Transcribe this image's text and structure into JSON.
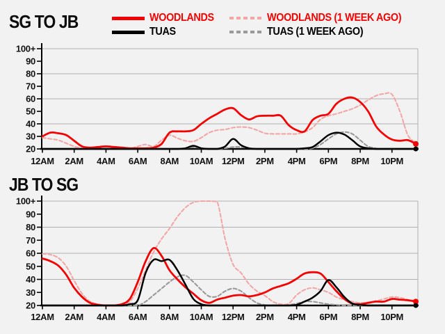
{
  "colors": {
    "background": "#f2f2f2",
    "red": "#f20202",
    "pink": "#f3a6a6",
    "black": "#000000",
    "gray": "#999999",
    "grid": "#b0b0b0",
    "axis": "#000000",
    "label": "#111111"
  },
  "legend": {
    "items": [
      {
        "label": "WOODLANDS",
        "text_color": "#f20202",
        "swatch_color": "#f20202",
        "swatch_style": "solid"
      },
      {
        "label": "WOODLANDS (1 WEEK AGO)",
        "text_color": "#f20202",
        "swatch_color": "#f3a6a6",
        "swatch_style": "dashed"
      },
      {
        "label": "TUAS",
        "text_color": "#000000",
        "swatch_color": "#000000",
        "swatch_style": "solid"
      },
      {
        "label": "TUAS (1 WEEK AGO)",
        "text_color": "#000000",
        "swatch_color": "#999999",
        "swatch_style": "dashed"
      }
    ]
  },
  "chart_data": [
    {
      "type": "line",
      "title": "SG TO JB",
      "x_labels": [
        "12AM",
        "2AM",
        "4AM",
        "6AM",
        "8AM",
        "10AM",
        "12PM",
        "2PM",
        "4PM",
        "6PM",
        "8PM",
        "10PM"
      ],
      "x_tick_step_hours": 2,
      "x_start_hour": 0,
      "x_step_hours": 0.5,
      "x_end_hour": 23.5,
      "ylim": [
        20,
        100
      ],
      "y_ticks": [
        "20",
        "30",
        "40",
        "50",
        "60",
        "70",
        "80",
        "90",
        "100+"
      ],
      "gridlines_at": [
        40,
        60,
        80,
        100
      ],
      "grid": true,
      "legend_position": "top",
      "series": [
        {
          "name": "WOODLANDS (1 WEEK AGO)",
          "style": "dashed",
          "color": "#f3a6a6",
          "end_dot": false,
          "values": [
            29,
            28,
            27,
            24.5,
            22,
            20.5,
            20,
            20,
            20,
            20,
            20,
            20,
            22,
            23.5,
            22,
            27,
            31,
            28.5,
            26.5,
            26,
            29,
            33,
            35,
            35.5,
            37,
            37.5,
            37,
            35,
            32.5,
            32,
            32,
            32,
            32,
            33.5,
            37,
            43.5,
            46.5,
            48,
            50,
            52,
            55,
            59,
            62.5,
            64,
            63.5,
            50,
            31,
            25
          ]
        },
        {
          "name": "TUAS (1 WEEK AGO)",
          "style": "dashed",
          "color": "#999999",
          "end_dot": false,
          "values": [
            20,
            20,
            20,
            20,
            20,
            20,
            20,
            20,
            20,
            20,
            20,
            20,
            20,
            20,
            20,
            20,
            20,
            20,
            20.5,
            21.5,
            20.5,
            20,
            20,
            20.5,
            21.5,
            21.5,
            20.5,
            20,
            20,
            20,
            20,
            20,
            20,
            20,
            20.5,
            23.5,
            28,
            32,
            33.5,
            32,
            27,
            22,
            20.5,
            20,
            20,
            20,
            20,
            20
          ]
        },
        {
          "name": "WOODLANDS",
          "style": "solid",
          "color": "#f20202",
          "end_dot": true,
          "values": [
            30,
            33,
            32.5,
            31,
            26.5,
            22,
            21,
            21.5,
            22,
            21.5,
            21,
            20.5,
            20.5,
            20.5,
            21,
            24,
            33,
            34,
            34,
            35,
            40,
            44.5,
            48,
            51.5,
            52.5,
            47,
            43.5,
            46,
            46.5,
            46.5,
            46.5,
            39,
            35,
            34,
            43,
            46.5,
            48,
            56,
            60,
            61,
            57.5,
            50,
            38,
            31.5,
            27.5,
            26.5,
            27,
            24
          ]
        },
        {
          "name": "TUAS",
          "style": "solid",
          "color": "#000000",
          "end_dot": true,
          "values": [
            20,
            20,
            20,
            20,
            20,
            20,
            20,
            20,
            20,
            20,
            20,
            20,
            20,
            20,
            20,
            20,
            20,
            20,
            20.5,
            22.5,
            20.5,
            20,
            20,
            22,
            28,
            23,
            20.5,
            20,
            20,
            20,
            20,
            20,
            20,
            20.5,
            21.5,
            26,
            31,
            33,
            31.5,
            27,
            22,
            20.5,
            20,
            20,
            20,
            20,
            20,
            20
          ]
        }
      ]
    },
    {
      "type": "line",
      "title": "JB TO SG",
      "x_labels": [
        "12AM",
        "2AM",
        "4AM",
        "6AM",
        "8AM",
        "10AM",
        "12PM",
        "2PM",
        "4PM",
        "6PM",
        "8PM",
        "10PM"
      ],
      "x_tick_step_hours": 2,
      "x_start_hour": 0,
      "x_step_hours": 0.5,
      "x_end_hour": 23.5,
      "ylim": [
        20,
        100
      ],
      "y_ticks": [
        "20",
        "30",
        "40",
        "50",
        "60",
        "70",
        "80",
        "90",
        "100+"
      ],
      "gridlines_at": [
        40,
        60,
        80,
        100
      ],
      "grid": true,
      "legend_position": "shared-top",
      "series": [
        {
          "name": "WOODLANDS (1 WEEK AGO)",
          "style": "dashed",
          "color": "#f3a6a6",
          "end_dot": false,
          "values": [
            59.5,
            59,
            56.5,
            50,
            39,
            29,
            23,
            21,
            20,
            20,
            20.5,
            23,
            33,
            47,
            61,
            71,
            79,
            88,
            95,
            99,
            100,
            100,
            99.5,
            71,
            51.5,
            45,
            36.5,
            31,
            27.5,
            23,
            21,
            21.5,
            28,
            32,
            33.5,
            32,
            30,
            26.5,
            24.5,
            23,
            22,
            22.5,
            23.5,
            25,
            26.5,
            26,
            24.5,
            23.5
          ]
        },
        {
          "name": "TUAS (1 WEEK AGO)",
          "style": "dashed",
          "color": "#999999",
          "end_dot": false,
          "values": [
            20,
            20,
            20,
            20,
            20,
            20,
            20,
            20,
            20,
            20,
            20,
            20,
            20,
            23,
            28,
            33,
            38,
            42,
            43,
            38,
            32,
            27,
            27,
            31,
            33,
            31,
            26,
            22,
            20.5,
            20,
            20,
            20.5,
            21.5,
            23,
            23,
            22,
            21,
            20.5,
            20,
            20,
            20,
            20,
            20,
            20,
            20,
            20,
            20,
            20
          ]
        },
        {
          "name": "WOODLANDS",
          "style": "solid",
          "color": "#f20202",
          "end_dot": true,
          "values": [
            56,
            54,
            50.5,
            43.5,
            33.5,
            26.5,
            22,
            20.5,
            20,
            20,
            21,
            25,
            38,
            54,
            64,
            58,
            47,
            40,
            34,
            29,
            24,
            22,
            24.5,
            26,
            27.5,
            28,
            27,
            28,
            30,
            33,
            35,
            37,
            40.5,
            44.5,
            45.5,
            44.5,
            38,
            31,
            25,
            21.5,
            21,
            22,
            23,
            23,
            25,
            24.5,
            24,
            23
          ]
        },
        {
          "name": "TUAS",
          "style": "solid",
          "color": "#000000",
          "end_dot": true,
          "values": [
            20,
            20,
            20,
            20,
            20,
            20,
            20,
            20,
            20,
            20,
            20,
            21,
            24,
            45,
            55,
            54,
            55,
            47,
            36,
            25,
            21,
            20,
            20,
            20,
            20,
            20,
            20,
            20,
            20,
            20,
            20,
            20,
            20.5,
            23,
            26,
            31,
            39.5,
            34,
            26.5,
            21.5,
            20.5,
            20,
            20,
            20,
            20,
            20,
            20,
            20
          ]
        }
      ]
    }
  ]
}
